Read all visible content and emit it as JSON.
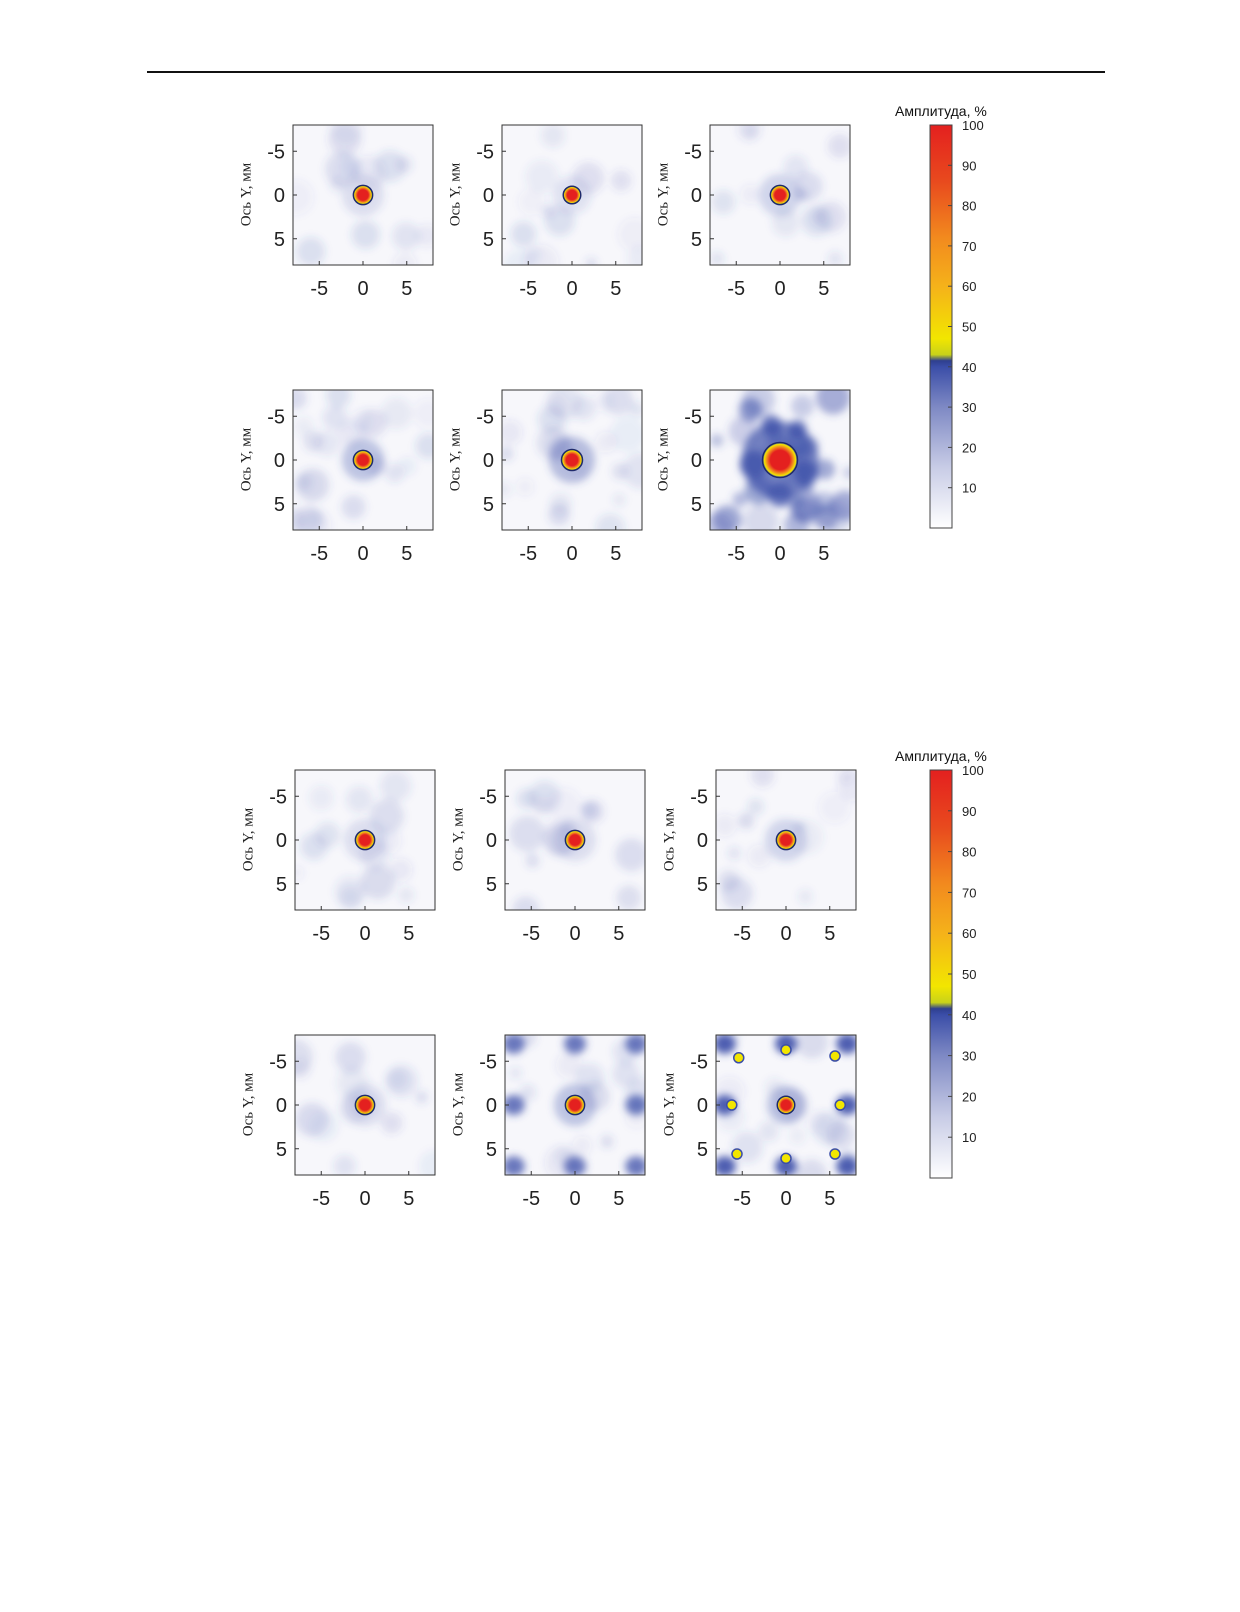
{
  "page": {
    "rule": true
  },
  "figures": [
    {
      "colorbar": {
        "title": "Амплитуда, %",
        "ticks": [
          "10",
          "20",
          "30",
          "40",
          "50",
          "60",
          "70",
          "80",
          "90",
          "100"
        ]
      },
      "panels": [
        {
          "ylabel": "Ось Y, мм",
          "spot": {
            "cx": 0,
            "cy": 0,
            "r": 1.1
          },
          "halo": 0.15,
          "pattern": "faint"
        },
        {
          "ylabel": "Ось Y, мм",
          "spot": {
            "cx": 0,
            "cy": 0,
            "r": 1.0
          },
          "halo": 0.12,
          "pattern": "faint"
        },
        {
          "ylabel": "Ось Y, мм",
          "spot": {
            "cx": 0,
            "cy": 0,
            "r": 1.1
          },
          "halo": 0.2,
          "pattern": "faint"
        },
        {
          "ylabel": "Ось Y, мм",
          "spot": {
            "cx": 0,
            "cy": 0,
            "r": 1.1
          },
          "halo": 0.3,
          "pattern": "cloud"
        },
        {
          "ylabel": "Ось Y, мм",
          "spot": {
            "cx": 0,
            "cy": 0,
            "r": 1.2
          },
          "halo": 0.35,
          "pattern": "cloud"
        },
        {
          "ylabel": "Ось Y, мм",
          "spot": {
            "cx": 0,
            "cy": 0,
            "r": 2.0
          },
          "halo": 0.7,
          "pattern": "strong"
        }
      ]
    },
    {
      "colorbar": {
        "title": "Амплитуда, %",
        "ticks": [
          "10",
          "20",
          "30",
          "40",
          "50",
          "60",
          "70",
          "80",
          "90",
          "100"
        ]
      },
      "panels": [
        {
          "ylabel": "Ось Y, мм",
          "spot": {
            "cx": 0,
            "cy": 0,
            "r": 1.1
          },
          "halo": 0.15,
          "pattern": "faint"
        },
        {
          "ylabel": "Ось Y, мм",
          "spot": {
            "cx": 0,
            "cy": 0,
            "r": 1.1
          },
          "halo": 0.15,
          "pattern": "faint"
        },
        {
          "ylabel": "Ось Y, мм",
          "spot": {
            "cx": 0,
            "cy": 0,
            "r": 1.1
          },
          "halo": 0.2,
          "pattern": "faint"
        },
        {
          "ylabel": "Ось Y, мм",
          "spot": {
            "cx": 0,
            "cy": 0,
            "r": 1.1
          },
          "halo": 0.15,
          "pattern": "faint"
        },
        {
          "ylabel": "Ось Y, мм",
          "spot": {
            "cx": 0,
            "cy": 0,
            "r": 1.1
          },
          "halo": 0.3,
          "pattern": "grating"
        },
        {
          "ylabel": "Ось Y, мм",
          "spot": {
            "cx": 0,
            "cy": 0,
            "r": 1.0
          },
          "halo": 0.3,
          "pattern": "lobes"
        }
      ]
    }
  ],
  "axis": {
    "xticks": [
      "-5",
      "0",
      "5"
    ],
    "yticks": [
      "-5",
      "0",
      "5"
    ],
    "range": [
      -8,
      8
    ]
  },
  "colors": {
    "low": "#ffffff",
    "blue": "#3b4ea8",
    "yellow": "#f2e600",
    "orange": "#f28a1e",
    "red": "#e4201f"
  }
}
